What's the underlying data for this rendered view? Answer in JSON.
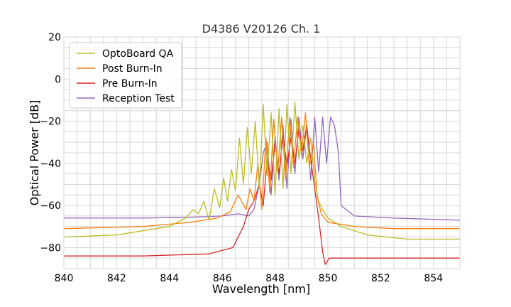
{
  "chart_data": {
    "type": "line",
    "title": "D4386 V20126 Ch. 1",
    "xlabel": "Wavelength [nm]",
    "ylabel": "Optical Power [dB]",
    "xlim": [
      840,
      855
    ],
    "ylim": [
      -90,
      20
    ],
    "x_ticks": [
      840,
      842,
      844,
      846,
      848,
      850,
      852,
      854
    ],
    "y_ticks": [
      20,
      0,
      -20,
      -40,
      -60,
      -80
    ],
    "x_tick_labels": [
      "840",
      "842",
      "844",
      "846",
      "848",
      "850",
      "852",
      "854"
    ],
    "y_tick_labels": [
      "20",
      "0",
      "−20",
      "−40",
      "−60",
      "−80"
    ],
    "grid": true,
    "legend_position": "top-left",
    "series": [
      {
        "name": "OptoBoard QA",
        "color": "#bcbd22",
        "x": [
          840.0,
          842.0,
          844.0,
          844.6,
          844.9,
          845.1,
          845.3,
          845.5,
          845.7,
          845.9,
          846.05,
          846.2,
          846.35,
          846.5,
          846.65,
          846.8,
          846.95,
          847.1,
          847.25,
          847.4,
          847.55,
          847.7,
          847.85,
          848.0,
          848.15,
          848.3,
          848.45,
          848.6,
          848.75,
          848.9,
          849.05,
          849.2,
          849.35,
          849.5,
          849.65,
          849.8,
          850.0,
          850.5,
          851.5,
          853.0,
          855.0
        ],
        "y": [
          -75,
          -74,
          -70,
          -66,
          -62,
          -64,
          -58,
          -67,
          -52,
          -61,
          -47,
          -58,
          -43,
          -53,
          -28,
          -50,
          -23,
          -45,
          -20,
          -52,
          -12,
          -46,
          -16,
          -55,
          -14,
          -52,
          -12,
          -45,
          -11,
          -38,
          -22,
          -40,
          -28,
          -48,
          -58,
          -62,
          -66,
          -70,
          -74,
          -76,
          -76
        ]
      },
      {
        "name": "Post Burn-In",
        "color": "#ff7f0e",
        "x": [
          840.0,
          843.0,
          844.8,
          845.8,
          846.3,
          846.6,
          846.9,
          847.05,
          847.2,
          847.35,
          847.5,
          847.65,
          847.8,
          847.95,
          848.1,
          848.25,
          848.4,
          848.55,
          848.7,
          848.85,
          849.0,
          849.15,
          849.3,
          849.45,
          849.6,
          849.75,
          850.0,
          851.0,
          852.5,
          855.0
        ],
        "y": [
          -71,
          -70,
          -68,
          -66,
          -63,
          -55,
          -62,
          -52,
          -58,
          -40,
          -62,
          -28,
          -54,
          -19,
          -44,
          -18,
          -48,
          -18,
          -42,
          -18,
          -36,
          -16,
          -42,
          -30,
          -56,
          -64,
          -68,
          -70,
          -71,
          -71
        ]
      },
      {
        "name": "Pre Burn-In",
        "color": "#d62728",
        "x": [
          840.0,
          843.0,
          845.5,
          846.4,
          846.8,
          847.0,
          847.2,
          847.4,
          847.55,
          847.7,
          847.85,
          848.0,
          848.15,
          848.3,
          848.45,
          848.6,
          848.75,
          848.9,
          849.05,
          849.2,
          849.35,
          849.5,
          849.65,
          849.8,
          849.9,
          850.05,
          851.0,
          853.0,
          855.0
        ],
        "y": [
          -84,
          -84,
          -83,
          -80,
          -70,
          -62,
          -58,
          -50,
          -60,
          -38,
          -48,
          -30,
          -45,
          -27,
          -41,
          -28,
          -40,
          -24,
          -34,
          -22,
          -38,
          -52,
          -66,
          -82,
          -88,
          -85,
          -85,
          -85,
          -85
        ]
      },
      {
        "name": "Reception Test",
        "color": "#9467bd",
        "x": [
          840.0,
          843.0,
          845.0,
          846.0,
          846.6,
          847.0,
          847.2,
          847.4,
          847.55,
          847.7,
          847.85,
          848.0,
          848.15,
          848.3,
          848.45,
          848.6,
          848.75,
          848.9,
          849.05,
          849.2,
          849.35,
          849.5,
          849.65,
          849.8,
          849.95,
          850.1,
          850.25,
          850.4,
          850.5,
          851.0,
          852.5,
          855.0
        ],
        "y": [
          -66,
          -66,
          -65.5,
          -65,
          -64,
          -65,
          -62,
          -50,
          -35,
          -30,
          -55,
          -27,
          -48,
          -22,
          -52,
          -19,
          -45,
          -18,
          -38,
          -22,
          -48,
          -18,
          -44,
          -18,
          -40,
          -18,
          -22,
          -35,
          -60,
          -65,
          -66,
          -67
        ]
      }
    ]
  }
}
